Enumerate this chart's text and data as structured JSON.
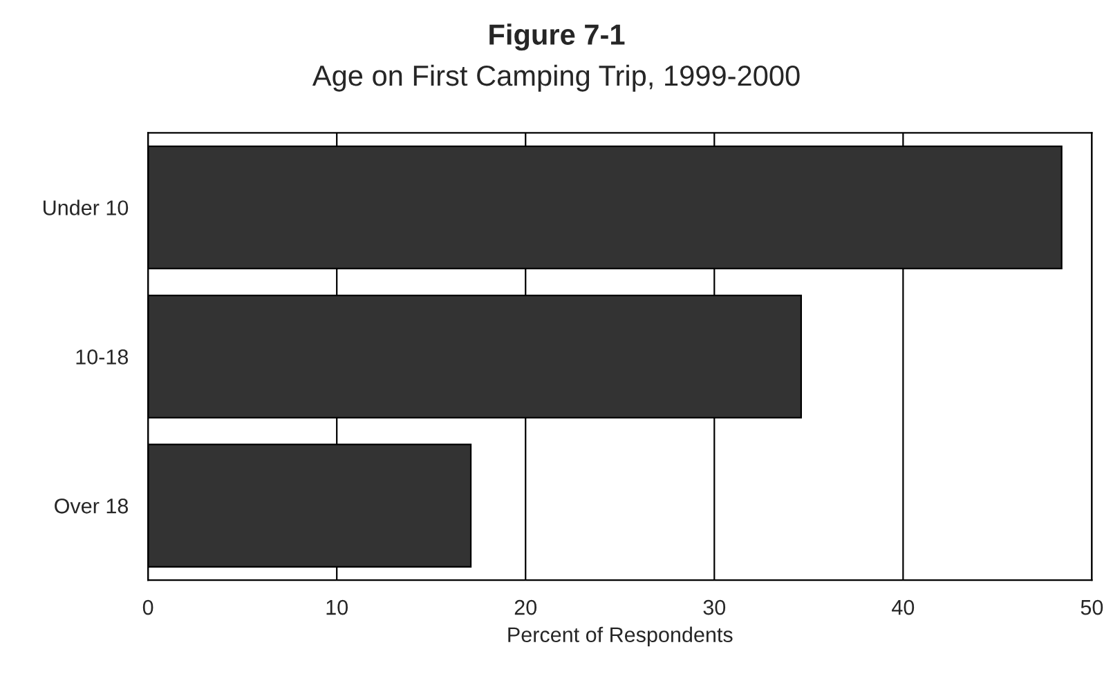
{
  "chart_data": {
    "type": "bar",
    "orientation": "horizontal",
    "title": "Figure 7-1",
    "subtitle": "Age on First Camping Trip, 1999-2000",
    "xlabel": "Percent of Respondents",
    "categories": [
      "Under 10",
      "10-18",
      "Over 18"
    ],
    "values": [
      48.4,
      34.6,
      17.1
    ],
    "color": "#333333",
    "xlim": [
      0,
      50
    ],
    "xticks": [
      0,
      10,
      20,
      30,
      40,
      50
    ],
    "grid": "x"
  }
}
